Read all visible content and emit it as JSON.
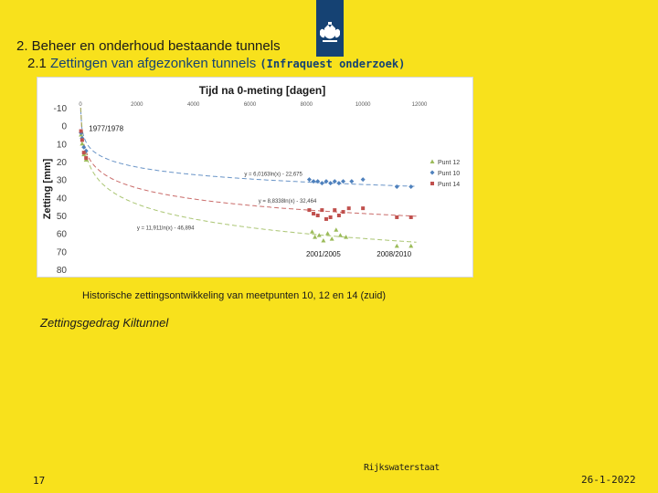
{
  "header": {
    "line1": "2. Beheer en onderhoud bestaande tunnels",
    "line2_prefix": "2.1 ",
    "line2_main": "Zettingen van afgezonken tunnels",
    "line2_small": "(Infraquest onderzoek)"
  },
  "logo": {
    "icon": "coat-of-arms-icon",
    "color": "#154273"
  },
  "under_chart_text": "Historische zettingsontwikkeling van meetpunten 10, 12 en 14 (zuid)",
  "caption": "Zettingsgedrag Kiltunnel",
  "footer": {
    "page_number": "17",
    "organization": "Rijkswaterstaat",
    "date": "26-1-2022"
  },
  "colors": {
    "background": "#f8e11c",
    "punt12": "#9bbb59",
    "punt10": "#4f81bd",
    "punt14": "#c0504d"
  },
  "chart_data": {
    "type": "scatter",
    "title": "Tijd na 0-meting [dagen]",
    "xlabel": "",
    "ylabel": "Zetting [mm]",
    "xlim": [
      0,
      12000
    ],
    "ylim": [
      -10,
      80
    ],
    "y_inverted": true,
    "x_ticks": [
      "0",
      "2000",
      "4000",
      "6000",
      "8000",
      "10000",
      "12000"
    ],
    "y_ticks": [
      "-10",
      "0",
      "10",
      "20",
      "30",
      "40",
      "50",
      "60",
      "70",
      "80"
    ],
    "legend_position": "right",
    "annotations": [
      {
        "text": "1977/1978",
        "x": 300,
        "y": 3
      },
      {
        "text": "2001/2005",
        "x": 8600,
        "y": 73
      },
      {
        "text": "2008/2010",
        "x": 11100,
        "y": 73
      }
    ],
    "trendlines": [
      {
        "series": "Punt 10",
        "equation": "y = 6,0163ln(x) - 22,675",
        "a": 6.0163,
        "b": -22.675,
        "label_x": 5800,
        "label_y": 28
      },
      {
        "series": "Punt 14",
        "equation": "y = 8,8338ln(x) - 32,464",
        "a": 8.8338,
        "b": -32.464,
        "label_x": 6300,
        "label_y": 43
      },
      {
        "series": "Punt 12",
        "equation": "y = 11,911ln(x) - 46,894",
        "a": 11.911,
        "b": -46.894,
        "label_x": 2000,
        "label_y": 58
      }
    ],
    "series": [
      {
        "name": "Punt 12",
        "color": "#9bbb59",
        "marker": "triangle",
        "x": [
          20,
          60,
          120,
          200,
          8200,
          8300,
          8450,
          8600,
          8750,
          8900,
          9050,
          9200,
          9400,
          11200,
          11700
        ],
        "y": [
          5,
          10,
          16,
          19,
          59,
          62,
          61,
          64,
          60,
          63,
          58,
          61,
          62,
          67,
          67
        ]
      },
      {
        "name": "Punt 10",
        "color": "#4f81bd",
        "marker": "diamond",
        "x": [
          20,
          60,
          120,
          200,
          8100,
          8250,
          8400,
          8550,
          8700,
          8850,
          9000,
          9150,
          9300,
          9600,
          10000,
          11200,
          11700
        ],
        "y": [
          4,
          7,
          12,
          14,
          30,
          31,
          31,
          32,
          31,
          32,
          31,
          32,
          31,
          31,
          30,
          34,
          34
        ]
      },
      {
        "name": "Punt 14",
        "color": "#c0504d",
        "marker": "square",
        "x": [
          20,
          60,
          120,
          200,
          8100,
          8250,
          8400,
          8550,
          8700,
          8850,
          9000,
          9150,
          9300,
          9500,
          10000,
          11200,
          11700
        ],
        "y": [
          3,
          8,
          15,
          18,
          47,
          49,
          50,
          47,
          52,
          51,
          47,
          50,
          48,
          46,
          46,
          51,
          51
        ]
      }
    ]
  }
}
